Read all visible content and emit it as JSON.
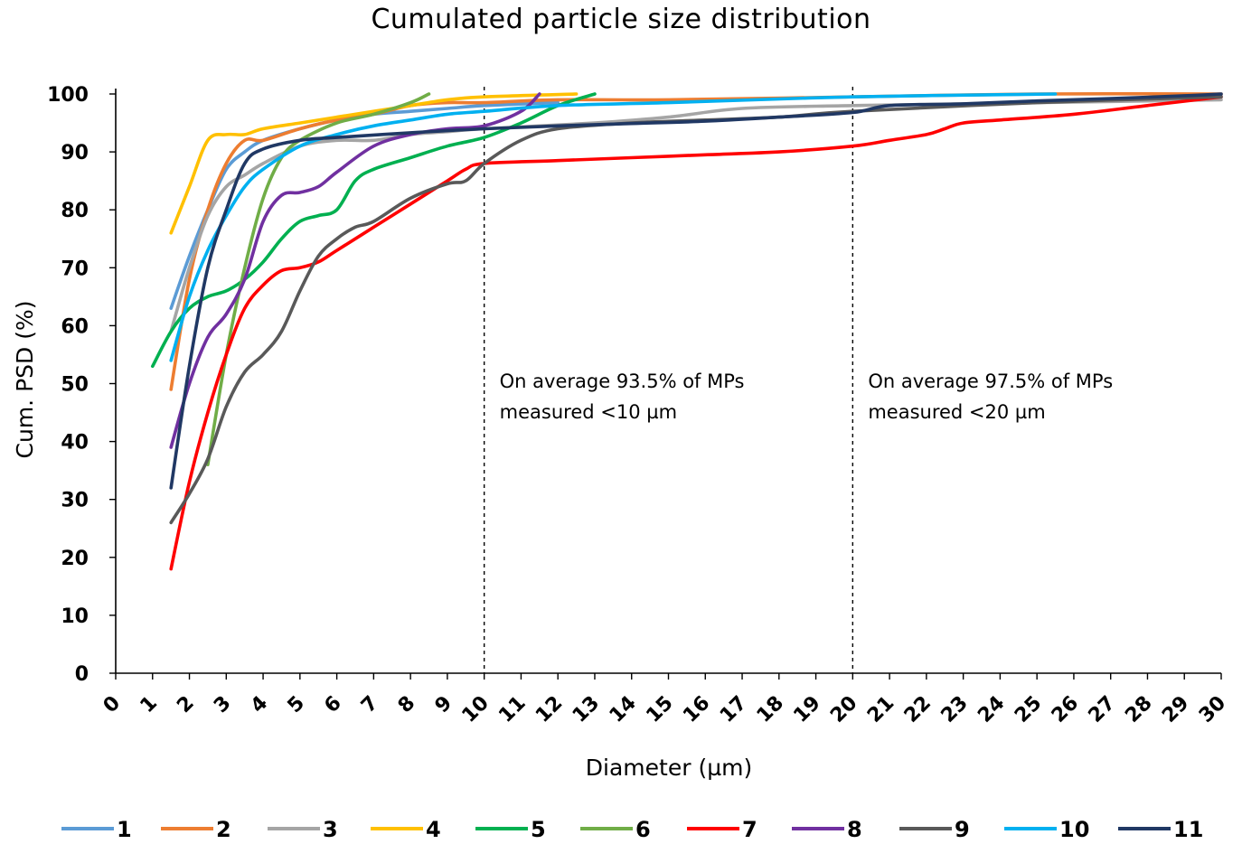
{
  "chart_data": {
    "type": "line",
    "title": "Cumulated particle size distribution",
    "xlabel": "Diameter (µm)",
    "ylabel": "Cum. PSD (%)",
    "xlim": [
      0,
      30
    ],
    "ylim": [
      0,
      100
    ],
    "x_ticks": [
      "0",
      "1",
      "2",
      "3",
      "4",
      "5",
      "6",
      "7",
      "8",
      "9",
      "10",
      "11",
      "12",
      "13",
      "14",
      "15",
      "16",
      "17",
      "18",
      "19",
      "20",
      "21",
      "22",
      "23",
      "24",
      "25",
      "26",
      "27",
      "28",
      "29",
      "30"
    ],
    "y_ticks": [
      "0",
      "10",
      "20",
      "30",
      "40",
      "50",
      "60",
      "70",
      "80",
      "90",
      "100"
    ],
    "grid": false,
    "legend_position": "bottom",
    "reference_lines": [
      {
        "x": 10,
        "style": "dashed",
        "annotation": [
          "On average 93.5% of  MPs",
          "measured <10 µm"
        ]
      },
      {
        "x": 20,
        "style": "dashed",
        "annotation": [
          "On average 97.5% of  MPs",
          "measured <20 µm"
        ]
      }
    ],
    "series": [
      {
        "name": "1",
        "color": "#5b9bd5",
        "x": [
          1.5,
          2,
          2.5,
          3,
          3.5,
          4,
          5,
          6,
          7,
          8,
          9,
          10,
          12
        ],
        "y": [
          63,
          72,
          80,
          87,
          90,
          92,
          94,
          95.5,
          96.5,
          97,
          97.5,
          98,
          98.5
        ]
      },
      {
        "name": "2",
        "color": "#ed7d31",
        "x": [
          1.5,
          2,
          2.5,
          3,
          3.5,
          4,
          5,
          6,
          7,
          8,
          9,
          10,
          12,
          15,
          20,
          25,
          30
        ],
        "y": [
          49,
          68,
          80,
          88,
          92,
          92,
          94,
          95.5,
          96.5,
          98,
          98.5,
          98.5,
          99,
          99,
          99.5,
          100,
          100
        ]
      },
      {
        "name": "3",
        "color": "#a5a5a5",
        "x": [
          1.5,
          2,
          2.5,
          3,
          3.5,
          4,
          5,
          6,
          7,
          8,
          9,
          10,
          13,
          15,
          17,
          20,
          25,
          30
        ],
        "y": [
          59,
          70,
          79,
          84,
          86,
          88,
          91,
          92,
          92,
          93,
          93.5,
          94,
          95,
          96,
          97.5,
          98,
          98.5,
          99
        ]
      },
      {
        "name": "4",
        "color": "#ffc000",
        "x": [
          1.5,
          2,
          2.5,
          3,
          3.5,
          4,
          5,
          6,
          7,
          8,
          9,
          10,
          12.5
        ],
        "y": [
          76,
          84,
          92,
          93,
          93,
          94,
          95,
          96,
          97,
          98,
          99,
          99.5,
          100
        ]
      },
      {
        "name": "5",
        "color": "#00b050",
        "x": [
          1,
          1.5,
          2,
          2.5,
          3,
          3.5,
          4,
          4.5,
          5,
          5.5,
          6,
          6.5,
          7,
          8,
          9,
          10,
          11,
          12,
          13
        ],
        "y": [
          53,
          59,
          63,
          65,
          66,
          68,
          71,
          75,
          78,
          79,
          80,
          85,
          87,
          89,
          91,
          92.5,
          95,
          98,
          100
        ]
      },
      {
        "name": "6",
        "color": "#70ad47",
        "x": [
          2.5,
          3,
          3.5,
          4,
          4.5,
          5,
          6,
          7,
          8,
          8.5
        ],
        "y": [
          36,
          55,
          70,
          82,
          89,
          92,
          95,
          96.5,
          98.5,
          100
        ]
      },
      {
        "name": "7",
        "color": "#ff0000",
        "x": [
          1.5,
          2,
          2.5,
          3,
          3.5,
          4,
          4.5,
          5,
          5.5,
          6,
          7,
          8,
          9,
          9.5,
          10,
          12,
          14,
          16,
          18,
          20,
          21,
          22,
          22.5,
          23,
          24,
          26,
          28,
          30
        ],
        "y": [
          18,
          33,
          45,
          55,
          63,
          67,
          69.5,
          70,
          71,
          73,
          77,
          81,
          85,
          87,
          88,
          88.5,
          89,
          89.5,
          90,
          91,
          92,
          93,
          94,
          95,
          95.5,
          96.5,
          98,
          99.5
        ]
      },
      {
        "name": "8",
        "color": "#7030a0",
        "x": [
          1.5,
          2,
          2.5,
          3,
          3.5,
          4,
          4.5,
          5,
          5.5,
          6,
          7,
          8,
          9,
          10,
          11,
          11.5
        ],
        "y": [
          39,
          50,
          58,
          62,
          68,
          78,
          82.5,
          83,
          84,
          86.5,
          91,
          93,
          94,
          94.5,
          97,
          100
        ]
      },
      {
        "name": "9",
        "color": "#595959",
        "x": [
          1.5,
          2,
          2.5,
          3,
          3.5,
          4,
          4.5,
          5,
          5.5,
          6,
          6.5,
          7,
          8,
          9,
          9.5,
          10,
          11,
          12,
          14,
          16,
          18,
          20,
          25,
          30
        ],
        "y": [
          26,
          31,
          37,
          46,
          52,
          55,
          59,
          66,
          72,
          75,
          77,
          78,
          82,
          84.5,
          85,
          88,
          92,
          94,
          95,
          95.5,
          96,
          97,
          98.5,
          99.5
        ]
      },
      {
        "name": "10",
        "color": "#00b0f0",
        "x": [
          1.5,
          2,
          2.5,
          3,
          3.5,
          4,
          5,
          6,
          7,
          8,
          9,
          10,
          12,
          15,
          20,
          25.5
        ],
        "y": [
          54,
          65,
          73,
          79,
          84,
          87,
          91,
          93,
          94.5,
          95.5,
          96.5,
          97,
          98,
          98.5,
          99.5,
          100
        ]
      },
      {
        "name": "11",
        "color": "#203864",
        "x": [
          1.5,
          2,
          2.5,
          3,
          3.5,
          4,
          5,
          6,
          8,
          10,
          12,
          14,
          16,
          18,
          20,
          21,
          23,
          25,
          27,
          29,
          30
        ],
        "y": [
          32,
          53,
          70,
          80,
          88,
          90.5,
          92,
          92.5,
          93.3,
          94,
          94.5,
          94.9,
          95.3,
          96,
          96.8,
          98,
          98.3,
          98.8,
          99.2,
          99.7,
          100
        ]
      }
    ]
  }
}
